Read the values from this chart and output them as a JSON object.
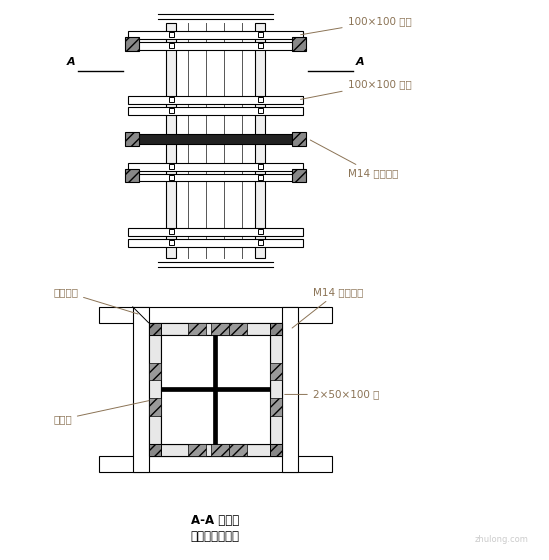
{
  "title1": "A-A 剪面图",
  "title2": "柱模安装示意图",
  "label_100x100_1": "100×100 万木",
  "label_100x100_2": "100×100 万木",
  "label_m14_top": "M14 对拉螺栓",
  "label_xianzhi": "限位螺栓",
  "label_jiaoh": "胶合板",
  "label_m14_sec": "M14 对拉螺栓",
  "label_2x50": "2×50×100 方",
  "label_A": "A",
  "bg_color": "#ffffff",
  "line_color": "#000000",
  "label_color": "#8B7355",
  "font_size_label": 7.5,
  "font_size_title": 8.5,
  "font_size_A": 8
}
